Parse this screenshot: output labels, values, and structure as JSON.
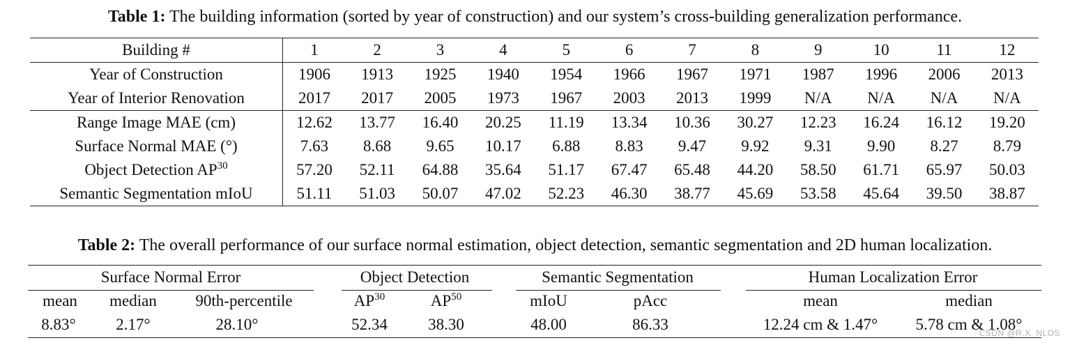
{
  "table1": {
    "caption_label": "Table 1:",
    "caption_text": " The building information (sorted by year of construction) and our system’s cross-building generalization performance.",
    "header_label": "Building #",
    "buildings": [
      "1",
      "2",
      "3",
      "4",
      "5",
      "6",
      "7",
      "8",
      "9",
      "10",
      "11",
      "12"
    ],
    "info_rows": [
      {
        "label": "Year of Construction",
        "values": [
          "1906",
          "1913",
          "1925",
          "1940",
          "1954",
          "1966",
          "1967",
          "1971",
          "1987",
          "1996",
          "2006",
          "2013"
        ]
      },
      {
        "label": "Year of Interior Renovation",
        "values": [
          "2017",
          "2017",
          "2005",
          "1973",
          "1967",
          "2003",
          "2013",
          "1999",
          "N/A",
          "N/A",
          "N/A",
          "N/A"
        ]
      }
    ],
    "perf_rows": [
      {
        "label": "Range Image MAE (cm)",
        "sup": "",
        "values": [
          "12.62",
          "13.77",
          "16.40",
          "20.25",
          "11.19",
          "13.34",
          "10.36",
          "30.27",
          "12.23",
          "16.24",
          "16.12",
          "19.20"
        ]
      },
      {
        "label": "Surface Normal MAE (°)",
        "sup": "",
        "values": [
          "7.63",
          "8.68",
          "9.65",
          "10.17",
          "6.88",
          "8.83",
          "9.47",
          "9.92",
          "9.31",
          "9.90",
          "8.27",
          "8.79"
        ]
      },
      {
        "label": "Object Detection AP",
        "sup": "30",
        "values": [
          "57.20",
          "52.11",
          "64.88",
          "35.64",
          "51.17",
          "67.47",
          "65.48",
          "44.20",
          "58.50",
          "61.71",
          "65.97",
          "50.03"
        ]
      },
      {
        "label": "Semantic Segmentation mIoU",
        "sup": "",
        "values": [
          "51.11",
          "51.03",
          "50.07",
          "47.02",
          "52.23",
          "46.30",
          "38.77",
          "45.69",
          "53.58",
          "45.64",
          "39.50",
          "38.87"
        ]
      }
    ]
  },
  "table2": {
    "caption_label": "Table 2:",
    "caption_text": " The overall performance of our surface normal estimation, object detection, semantic segmentation and 2D human localization.",
    "groups": {
      "surface_normal": "Surface Normal Error",
      "object_detection": "Object Detection",
      "semantic_segmentation": "Semantic Segmentation",
      "human_localization": "Human Localization Error"
    },
    "subheaders": {
      "sn_mean": "mean",
      "sn_median": "median",
      "sn_p90": "90th-percentile",
      "od_ap30_base": "AP",
      "od_ap30_sup": "30",
      "od_ap50_base": "AP",
      "od_ap50_sup": "50",
      "ss_miou": "mIoU",
      "ss_pacc": "pAcc",
      "hl_mean": "mean",
      "hl_median": "median"
    },
    "values": {
      "sn_mean": "8.83°",
      "sn_median": "2.17°",
      "sn_p90": "28.10°",
      "od_ap30": "52.34",
      "od_ap50": "38.30",
      "ss_miou": "48.00",
      "ss_pacc": "86.33",
      "hl_mean": "12.24 cm & 1.47°",
      "hl_median": "5.78 cm & 1.08°"
    }
  },
  "watermark": "CSDN @R.X. NLOS"
}
